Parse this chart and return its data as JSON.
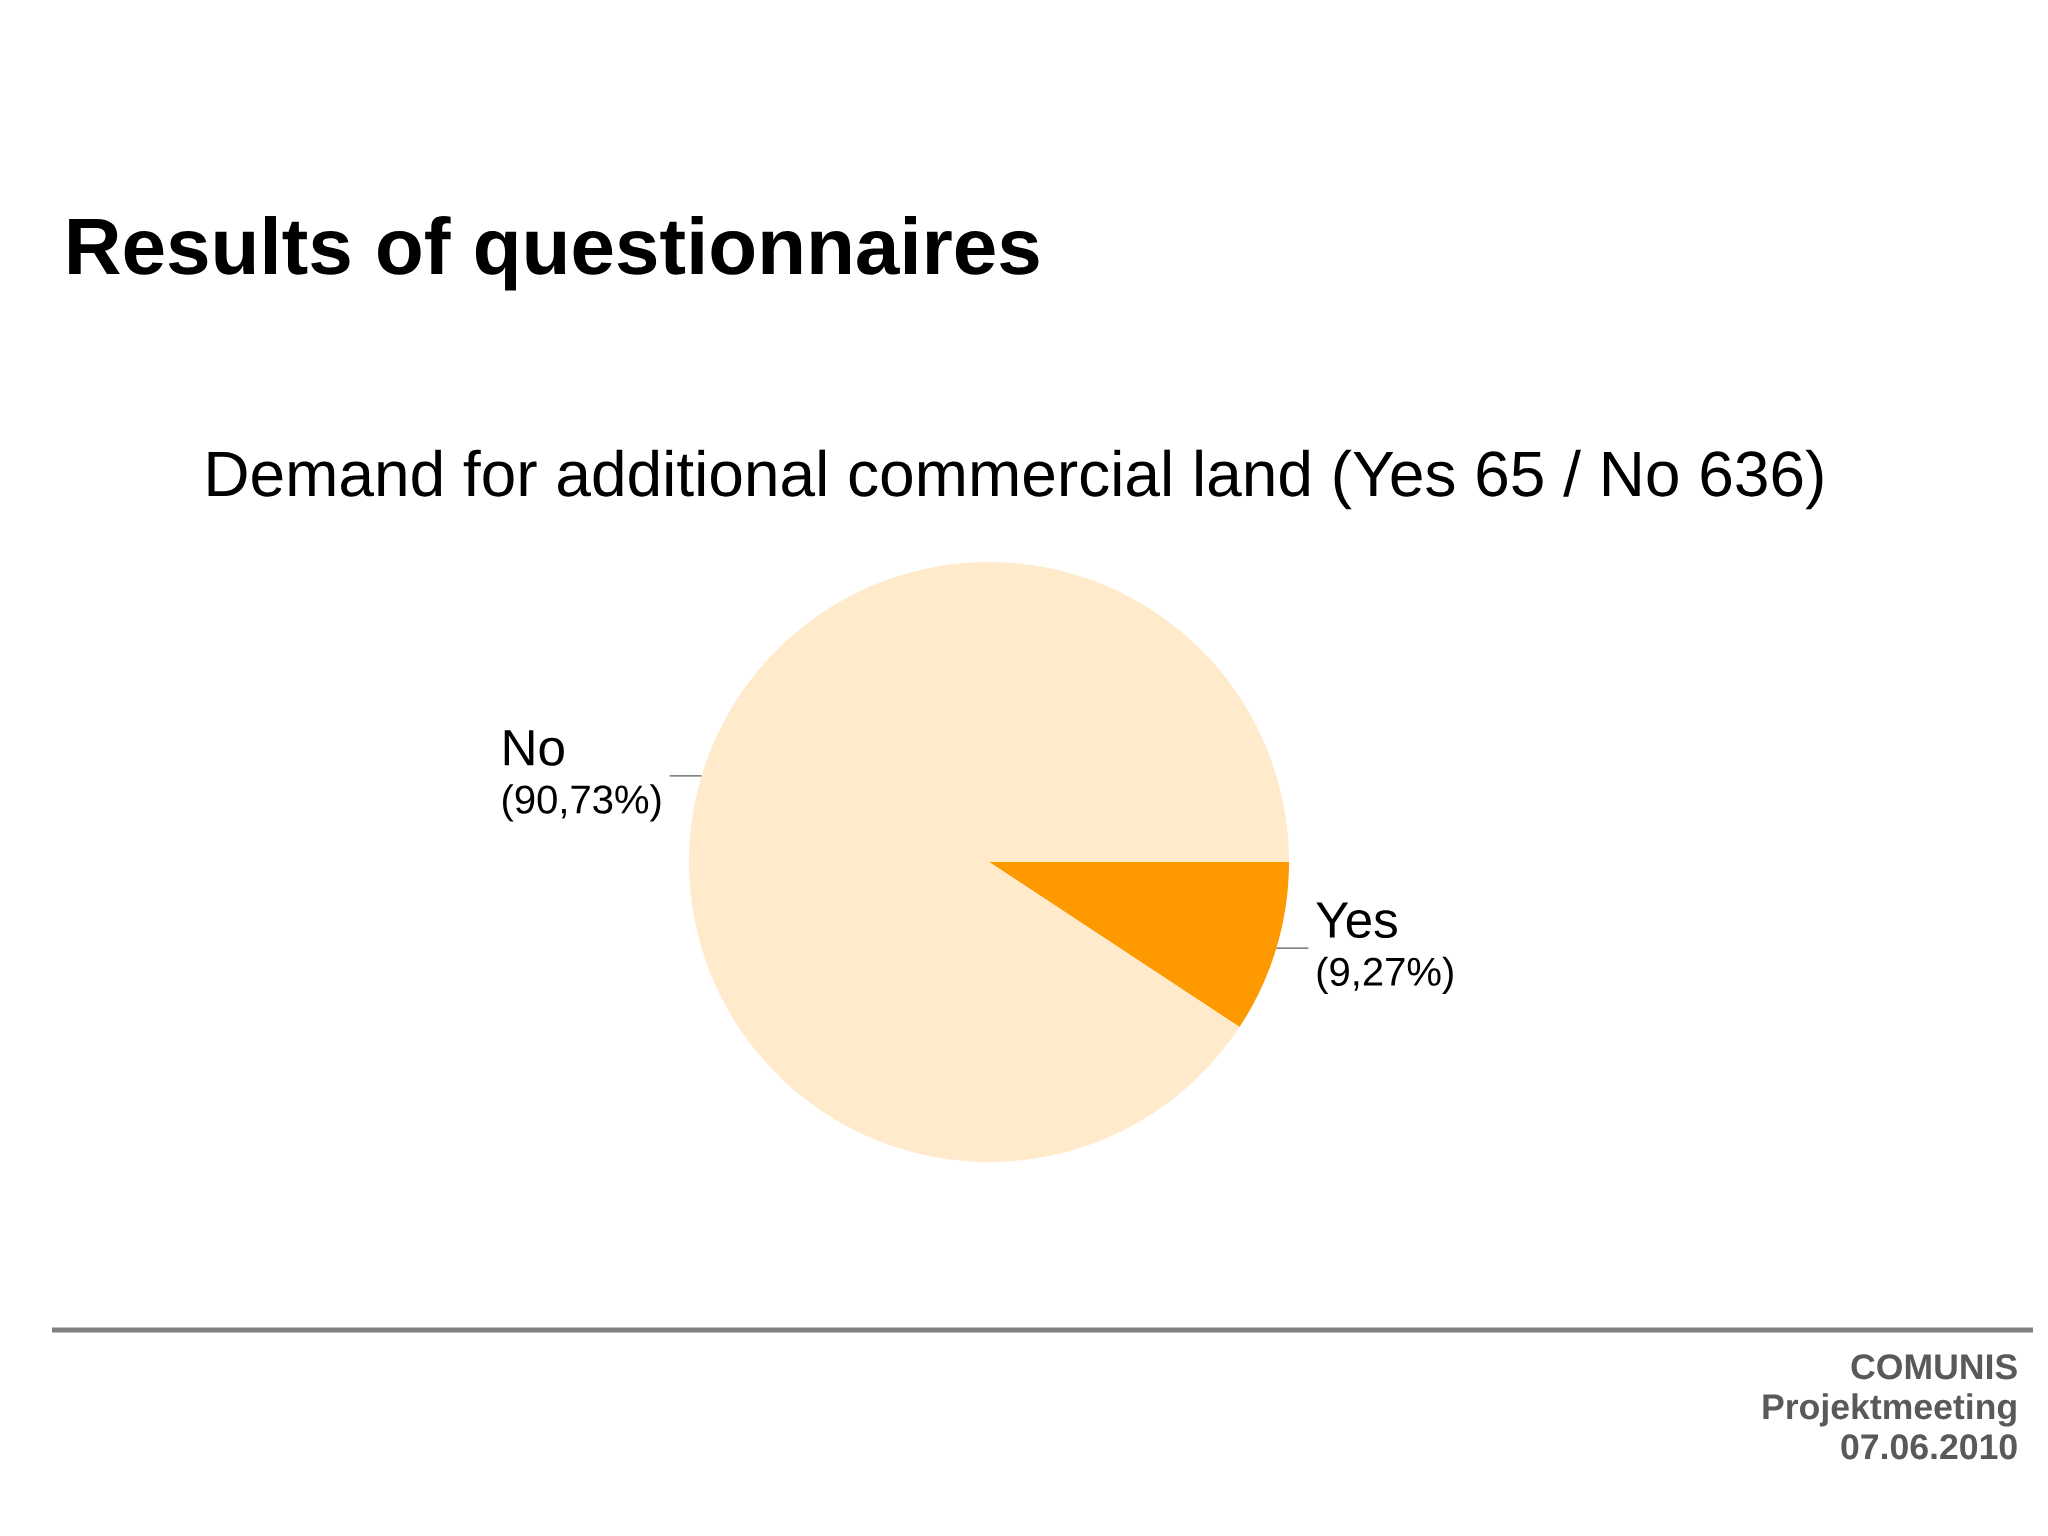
{
  "chart_data": {
    "type": "pie",
    "title": "Results of questionnaires",
    "subtitle": "Demand for additional commercial land (Yes 65 / No 636)",
    "categories": [
      "Yes",
      "No"
    ],
    "values": [
      9.27,
      90.73
    ],
    "colors": [
      "#ff9900",
      "#ffebcc"
    ],
    "value_labels": [
      "(9,27%)",
      "(90,73%)"
    ],
    "annotations": [
      "COMUNIS",
      "Projektmeeting",
      "07.06.2010"
    ]
  }
}
